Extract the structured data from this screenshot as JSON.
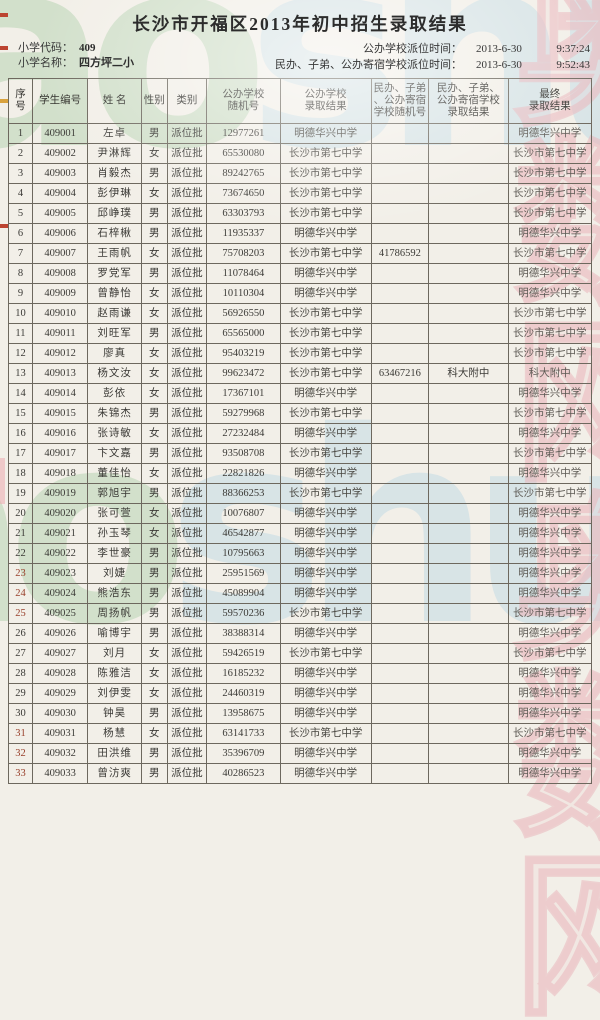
{
  "title": "长沙市开福区2013年初中招生录取结果",
  "meta": {
    "school_code_label": "小学代码：",
    "school_code": "409",
    "school_name_label": "小学名称：",
    "school_name": "四方坪二小",
    "public_time_label": "公办学校派位时间：",
    "public_time_date": "2013-6-30",
    "public_time_clock": "9:37:24",
    "private_time_label": "民办、子弟、公办寄宿学校派位时间：",
    "private_time_date": "2013-6-30",
    "private_time_clock": "9:52:43"
  },
  "watermarks": {
    "logo_text": "aoshu",
    "cn_text": "奥数网奥数网",
    "logo_green": "#8cc08a",
    "logo_blue": "#9ecbe4",
    "cn_pink": "#e9b6bc"
  },
  "table": {
    "headers": [
      "序号",
      "学生编号",
      "姓 名",
      "性别",
      "类别",
      "公办学校\n随机号",
      "公办学校\n录取结果",
      "民办、子弟\n、公办寄宿\n学校随机号",
      "民办、子弟、\n公办寄宿学校\n录取结果",
      "最终\n录取结果"
    ],
    "red_seq_rows": [
      23,
      24,
      25,
      31,
      32,
      33
    ],
    "rows": [
      [
        "1",
        "409001",
        "左卓",
        "男",
        "派位批",
        "12977261",
        "明德华兴中学",
        "",
        "",
        "明德华兴中学"
      ],
      [
        "2",
        "409002",
        "尹淋辉",
        "女",
        "派位批",
        "65530080",
        "长沙市第七中学",
        "",
        "",
        "长沙市第七中学"
      ],
      [
        "3",
        "409003",
        "肖毅杰",
        "男",
        "派位批",
        "89242765",
        "长沙市第七中学",
        "",
        "",
        "长沙市第七中学"
      ],
      [
        "4",
        "409004",
        "彭伊琳",
        "女",
        "派位批",
        "73674650",
        "长沙市第七中学",
        "",
        "",
        "长沙市第七中学"
      ],
      [
        "5",
        "409005",
        "邱峥璞",
        "男",
        "派位批",
        "63303793",
        "长沙市第七中学",
        "",
        "",
        "长沙市第七中学"
      ],
      [
        "6",
        "409006",
        "石梓楸",
        "男",
        "派位批",
        "11935337",
        "明德华兴中学",
        "",
        "",
        "明德华兴中学"
      ],
      [
        "7",
        "409007",
        "王雨帆",
        "女",
        "派位批",
        "75708203",
        "长沙市第七中学",
        "41786592",
        "",
        "长沙市第七中学"
      ],
      [
        "8",
        "409008",
        "罗党军",
        "男",
        "派位批",
        "11078464",
        "明德华兴中学",
        "",
        "",
        "明德华兴中学"
      ],
      [
        "9",
        "409009",
        "曾静怡",
        "女",
        "派位批",
        "10110304",
        "明德华兴中学",
        "",
        "",
        "明德华兴中学"
      ],
      [
        "10",
        "409010",
        "赵雨谦",
        "女",
        "派位批",
        "56926550",
        "长沙市第七中学",
        "",
        "",
        "长沙市第七中学"
      ],
      [
        "11",
        "409011",
        "刘旺军",
        "男",
        "派位批",
        "65565000",
        "长沙市第七中学",
        "",
        "",
        "长沙市第七中学"
      ],
      [
        "12",
        "409012",
        "廖真",
        "女",
        "派位批",
        "95403219",
        "长沙市第七中学",
        "",
        "",
        "长沙市第七中学"
      ],
      [
        "13",
        "409013",
        "杨文汝",
        "女",
        "派位批",
        "99623472",
        "长沙市第七中学",
        "63467216",
        "科大附中",
        "科大附中"
      ],
      [
        "14",
        "409014",
        "彭依",
        "女",
        "派位批",
        "17367101",
        "明德华兴中学",
        "",
        "",
        "明德华兴中学"
      ],
      [
        "15",
        "409015",
        "朱锦杰",
        "男",
        "派位批",
        "59279968",
        "长沙市第七中学",
        "",
        "",
        "长沙市第七中学"
      ],
      [
        "16",
        "409016",
        "张诗敏",
        "女",
        "派位批",
        "27232484",
        "明德华兴中学",
        "",
        "",
        "明德华兴中学"
      ],
      [
        "17",
        "409017",
        "卞文嘉",
        "男",
        "派位批",
        "93508708",
        "长沙市第七中学",
        "",
        "",
        "长沙市第七中学"
      ],
      [
        "18",
        "409018",
        "董佳怡",
        "女",
        "派位批",
        "22821826",
        "明德华兴中学",
        "",
        "",
        "明德华兴中学"
      ],
      [
        "19",
        "409019",
        "郭旭宇",
        "男",
        "派位批",
        "88366253",
        "长沙市第七中学",
        "",
        "",
        "长沙市第七中学"
      ],
      [
        "20",
        "409020",
        "张可萱",
        "女",
        "派位批",
        "10076807",
        "明德华兴中学",
        "",
        "",
        "明德华兴中学"
      ],
      [
        "21",
        "409021",
        "孙玉琴",
        "女",
        "派位批",
        "46542877",
        "明德华兴中学",
        "",
        "",
        "明德华兴中学"
      ],
      [
        "22",
        "409022",
        "李世豪",
        "男",
        "派位批",
        "10795663",
        "明德华兴中学",
        "",
        "",
        "明德华兴中学"
      ],
      [
        "23",
        "409023",
        "刘婕",
        "男",
        "派位批",
        "25951569",
        "明德华兴中学",
        "",
        "",
        "明德华兴中学"
      ],
      [
        "24",
        "409024",
        "熊浩东",
        "男",
        "派位批",
        "45089904",
        "明德华兴中学",
        "",
        "",
        "明德华兴中学"
      ],
      [
        "25",
        "409025",
        "周扬帆",
        "男",
        "派位批",
        "59570236",
        "长沙市第七中学",
        "",
        "",
        "长沙市第七中学"
      ],
      [
        "26",
        "409026",
        "喻博宇",
        "男",
        "派位批",
        "38388314",
        "明德华兴中学",
        "",
        "",
        "明德华兴中学"
      ],
      [
        "27",
        "409027",
        "刘月",
        "女",
        "派位批",
        "59426519",
        "长沙市第七中学",
        "",
        "",
        "长沙市第七中学"
      ],
      [
        "28",
        "409028",
        "陈雅洁",
        "女",
        "派位批",
        "16185232",
        "明德华兴中学",
        "",
        "",
        "明德华兴中学"
      ],
      [
        "29",
        "409029",
        "刘伊雯",
        "女",
        "派位批",
        "24460319",
        "明德华兴中学",
        "",
        "",
        "明德华兴中学"
      ],
      [
        "30",
        "409030",
        "钟昊",
        "男",
        "派位批",
        "13958675",
        "明德华兴中学",
        "",
        "",
        "明德华兴中学"
      ],
      [
        "31",
        "409031",
        "杨慧",
        "女",
        "派位批",
        "63141733",
        "长沙市第七中学",
        "",
        "",
        "长沙市第七中学"
      ],
      [
        "32",
        "409032",
        "田洪维",
        "男",
        "派位批",
        "35396709",
        "明德华兴中学",
        "",
        "",
        "明德华兴中学"
      ],
      [
        "33",
        "409033",
        "曾汸爽",
        "男",
        "派位批",
        "40286523",
        "明德华兴中学",
        "",
        "",
        "明德华兴中学"
      ]
    ]
  }
}
